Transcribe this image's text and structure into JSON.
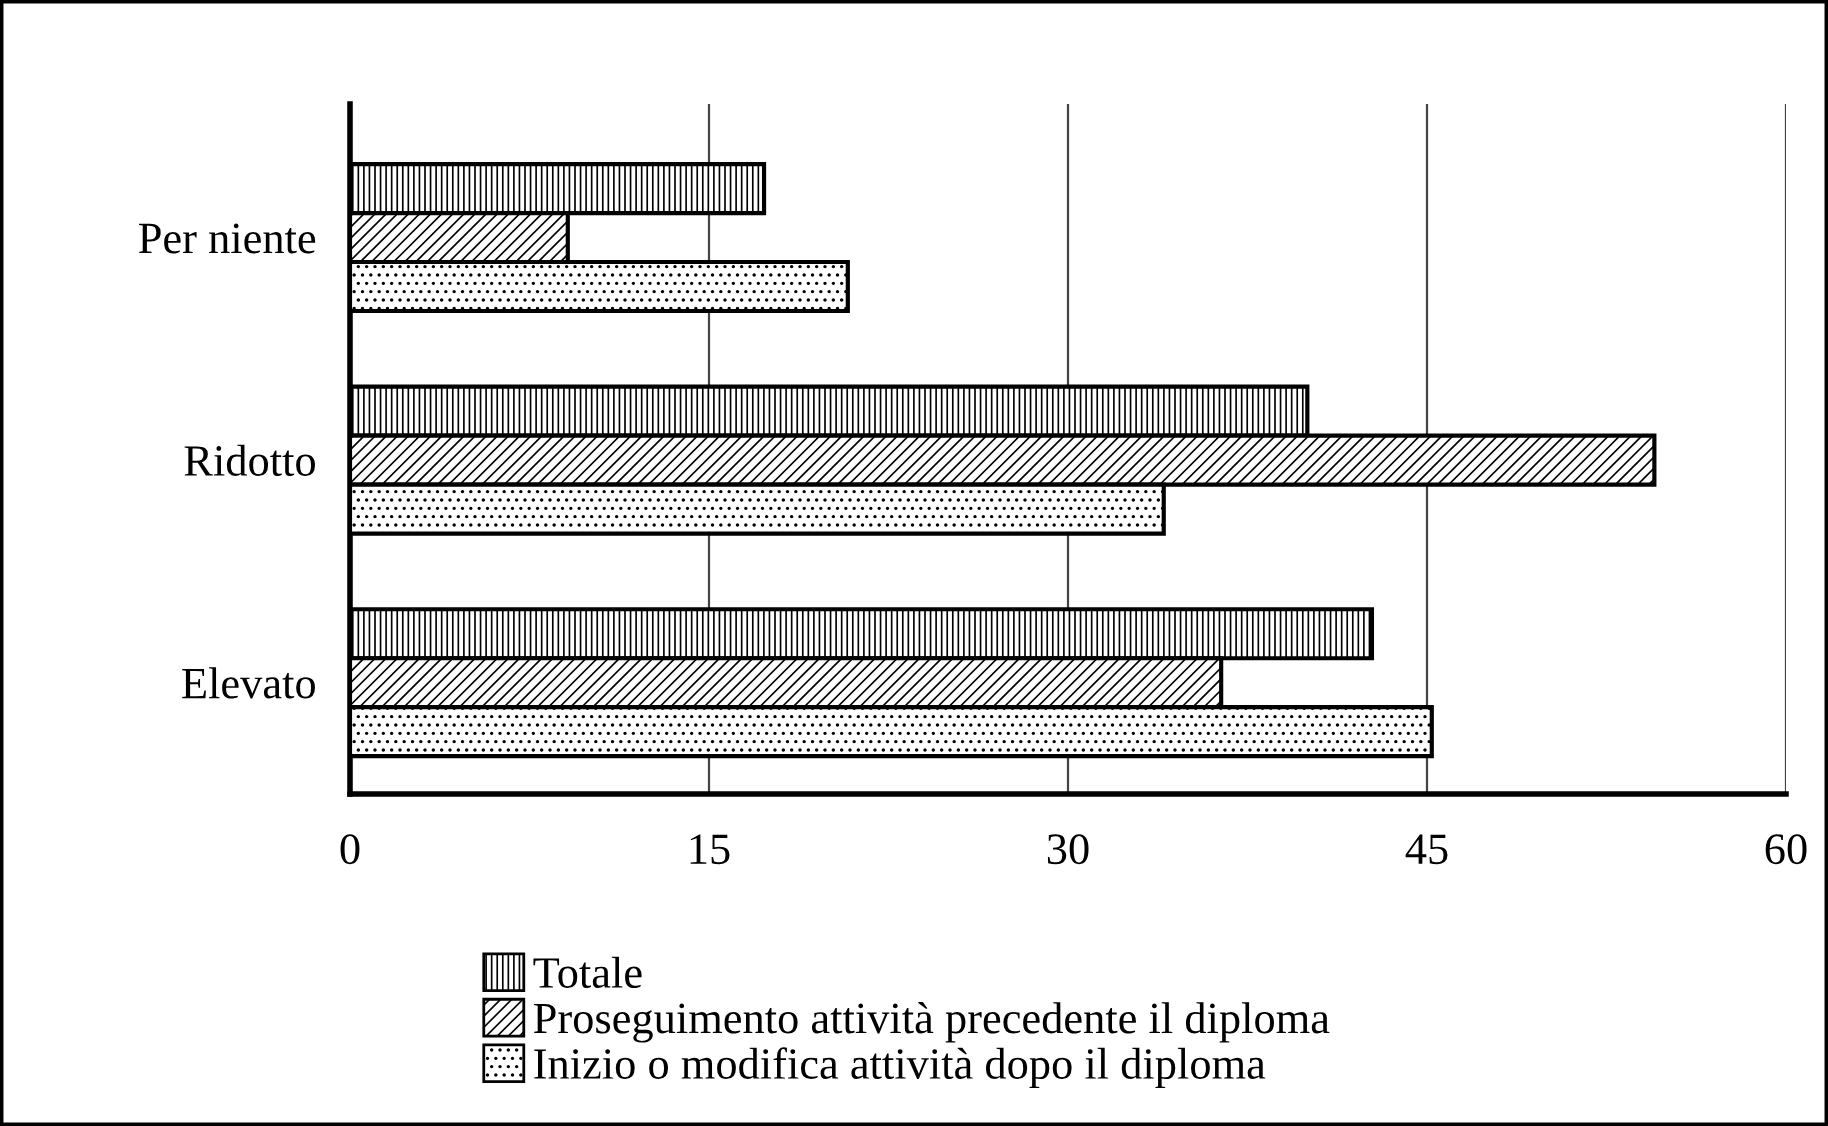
{
  "chart_data": {
    "type": "bar",
    "orientation": "horizontal",
    "categories": [
      "Per niente",
      "Ridotto",
      "Elevato"
    ],
    "series": [
      {
        "name": "Totale",
        "color": "#000000",
        "values": [
          17.3,
          40.0,
          42.7
        ]
      },
      {
        "name": "Proseguimento attività precedente il diploma",
        "color": "#000000",
        "values": [
          9.1,
          54.5,
          36.4
        ]
      },
      {
        "name": "Inizio o modifica attività dopo il diploma",
        "color": "#000000",
        "values": [
          20.8,
          34.0,
          45.2
        ]
      }
    ],
    "xlim": [
      0,
      60
    ],
    "xticks": [
      0,
      15,
      30,
      45,
      60
    ],
    "grid": "x",
    "legend": "bottom"
  }
}
